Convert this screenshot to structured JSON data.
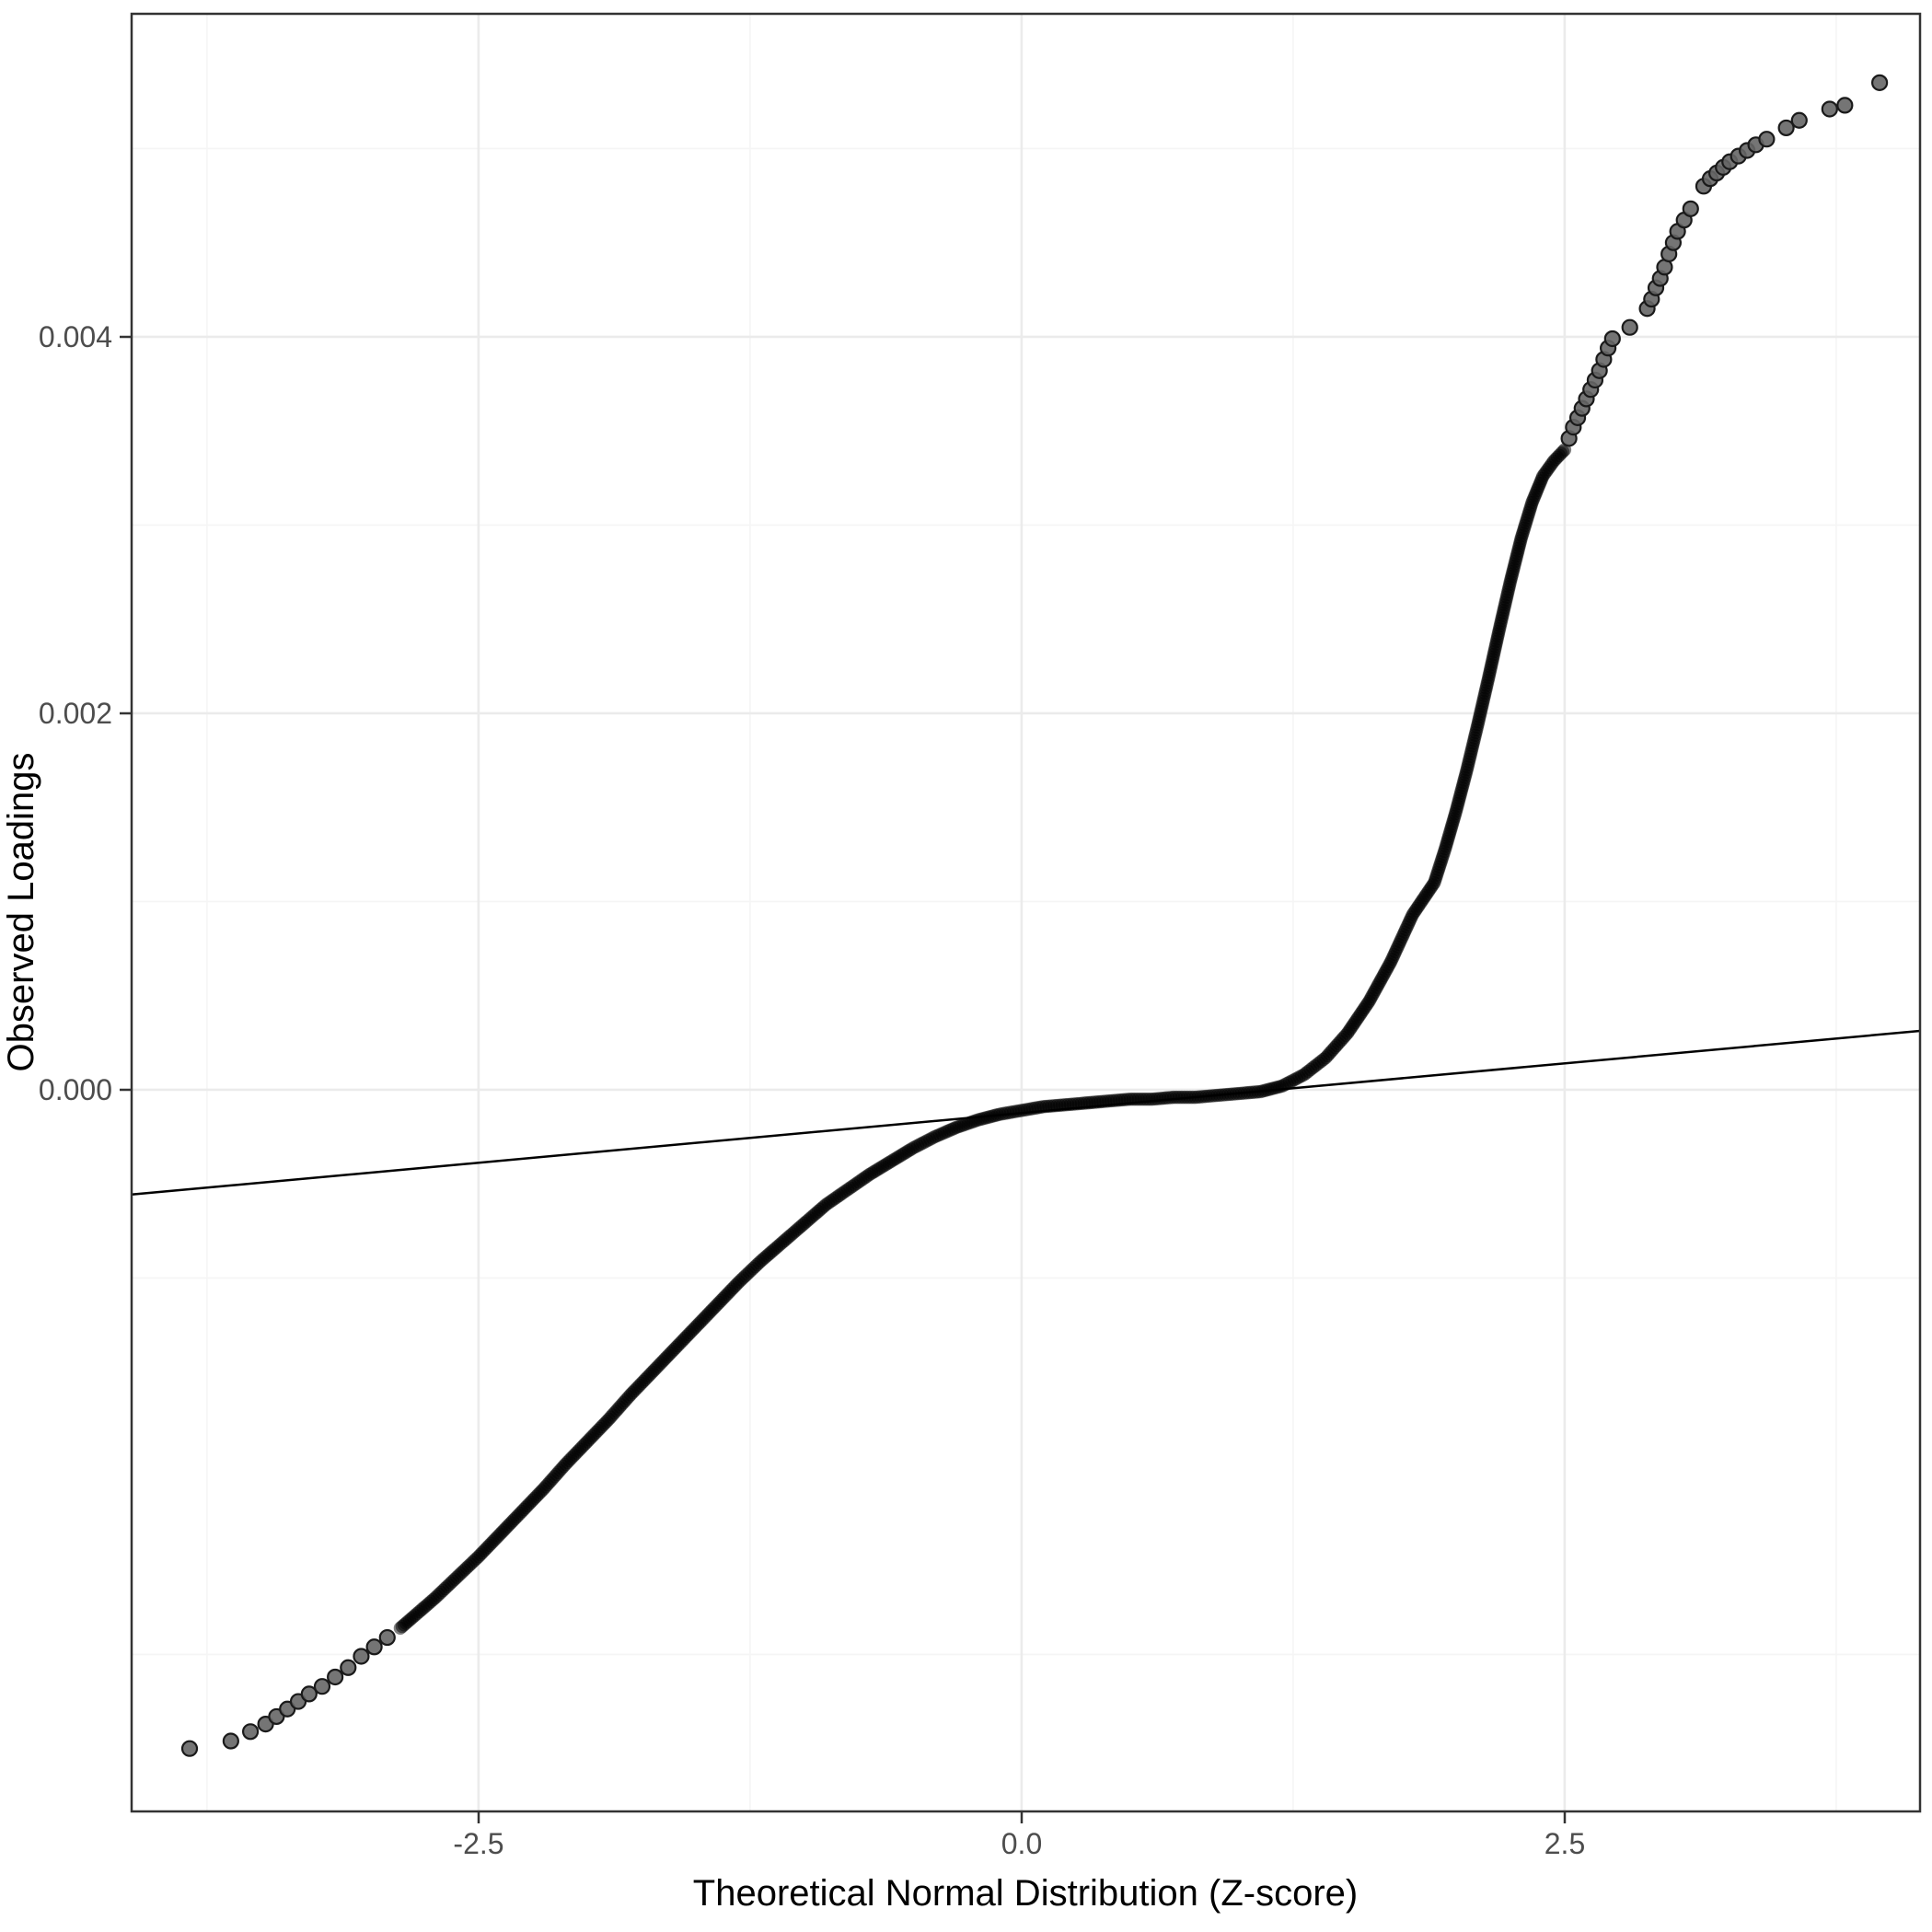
{
  "figure": {
    "background": "#FFFFFF"
  },
  "chart_data": {
    "type": "scatter",
    "subtype": "qq_plot",
    "title": "",
    "xlabel": "Theoretical Normal Distribution (Z-score)",
    "ylabel": "Observed Loadings",
    "xlim": [
      -4.097,
      4.136
    ],
    "ylim": [
      -0.003834,
      0.005716
    ],
    "grid": true,
    "legend": "none",
    "x_ticks": [
      {
        "value": -2.5,
        "label": "-2.5"
      },
      {
        "value": 0.0,
        "label": "0.0"
      },
      {
        "value": 2.5,
        "label": "2.5"
      }
    ],
    "y_ticks": [
      {
        "value": 0.0,
        "label": "0.000"
      },
      {
        "value": 0.002,
        "label": "0.002"
      },
      {
        "value": 0.004,
        "label": "0.004"
      }
    ],
    "x_minor": [
      -3.75,
      -1.25,
      1.25,
      3.75
    ],
    "y_minor": [
      -0.003,
      -0.001,
      0.001,
      0.003,
      0.005
    ],
    "reference_line": {
      "intercept": -0.000124,
      "slope": 0.0001056
    },
    "series": [
      {
        "name": "observed-loadings-dense-band",
        "render": "interpolated",
        "spacing_px": 3,
        "control_points": [
          [
            -2.86,
            -0.00286
          ],
          [
            -2.8,
            -0.0028
          ],
          [
            -2.7,
            -0.0027
          ],
          [
            -2.6,
            -0.00259
          ],
          [
            -2.5,
            -0.00248
          ],
          [
            -2.4,
            -0.00236
          ],
          [
            -2.3,
            -0.00224
          ],
          [
            -2.2,
            -0.00212
          ],
          [
            -2.1,
            -0.00199
          ],
          [
            -2.0,
            -0.00187
          ],
          [
            -1.9,
            -0.00175
          ],
          [
            -1.8,
            -0.00162
          ],
          [
            -1.7,
            -0.0015
          ],
          [
            -1.6,
            -0.00138
          ],
          [
            -1.5,
            -0.00126
          ],
          [
            -1.4,
            -0.00114
          ],
          [
            -1.3,
            -0.00102
          ],
          [
            -1.2,
            -0.00091
          ],
          [
            -1.1,
            -0.00081
          ],
          [
            -1.0,
            -0.00071
          ],
          [
            -0.9,
            -0.00061
          ],
          [
            -0.8,
            -0.00053
          ],
          [
            -0.7,
            -0.00045
          ],
          [
            -0.6,
            -0.00038
          ],
          [
            -0.5,
            -0.00031
          ],
          [
            -0.4,
            -0.00025
          ],
          [
            -0.3,
            -0.0002
          ],
          [
            -0.2,
            -0.00016
          ],
          [
            -0.1,
            -0.00013
          ],
          [
            0.0,
            -0.00011
          ],
          [
            0.1,
            -9e-05
          ],
          [
            0.2,
            -8e-05
          ],
          [
            0.3,
            -7e-05
          ],
          [
            0.4,
            -6e-05
          ],
          [
            0.5,
            -5e-05
          ],
          [
            0.6,
            -5e-05
          ],
          [
            0.7,
            -4e-05
          ],
          [
            0.8,
            -4e-05
          ],
          [
            0.9,
            -3e-05
          ],
          [
            1.0,
            -2e-05
          ],
          [
            1.1,
            -1e-05
          ],
          [
            1.2,
            2e-05
          ],
          [
            1.3,
            8e-05
          ],
          [
            1.4,
            0.00017
          ],
          [
            1.5,
            0.0003
          ],
          [
            1.6,
            0.00047
          ],
          [
            1.7,
            0.00068
          ],
          [
            1.8,
            0.00093
          ],
          [
            1.9,
            0.0011
          ],
          [
            1.95,
            0.00128
          ],
          [
            2.0,
            0.00148
          ],
          [
            2.05,
            0.0017
          ],
          [
            2.1,
            0.00194
          ],
          [
            2.15,
            0.00219
          ],
          [
            2.2,
            0.00245
          ],
          [
            2.25,
            0.0027
          ],
          [
            2.3,
            0.00293
          ],
          [
            2.35,
            0.00312
          ],
          [
            2.4,
            0.00326
          ],
          [
            2.45,
            0.00334
          ],
          [
            2.5,
            0.0034
          ]
        ]
      },
      {
        "name": "lower-tail-points",
        "render": "points",
        "points": [
          [
            -3.83,
            -0.0035
          ],
          [
            -3.64,
            -0.00346
          ],
          [
            -3.55,
            -0.00341
          ],
          [
            -3.48,
            -0.00337
          ],
          [
            -3.43,
            -0.00333
          ],
          [
            -3.38,
            -0.00329
          ],
          [
            -3.33,
            -0.00325
          ],
          [
            -3.28,
            -0.00321
          ],
          [
            -3.22,
            -0.00317
          ],
          [
            -3.16,
            -0.00312
          ],
          [
            -3.1,
            -0.00307
          ],
          [
            -3.04,
            -0.00301
          ],
          [
            -2.98,
            -0.00296
          ],
          [
            -2.92,
            -0.00291
          ]
        ]
      },
      {
        "name": "upper-tail-points",
        "render": "points",
        "points": [
          [
            2.52,
            0.00346
          ],
          [
            2.54,
            0.00352
          ],
          [
            2.56,
            0.00357
          ],
          [
            2.58,
            0.00362
          ],
          [
            2.6,
            0.00367
          ],
          [
            2.62,
            0.00372
          ],
          [
            2.64,
            0.00377
          ],
          [
            2.66,
            0.00382
          ],
          [
            2.68,
            0.00388
          ],
          [
            2.7,
            0.00394
          ],
          [
            2.72,
            0.00399
          ],
          [
            2.8,
            0.00405
          ],
          [
            2.88,
            0.00415
          ],
          [
            2.9,
            0.0042
          ],
          [
            2.92,
            0.00426
          ],
          [
            2.94,
            0.00431
          ],
          [
            2.96,
            0.00437
          ],
          [
            2.98,
            0.00444
          ],
          [
            3.0,
            0.0045
          ],
          [
            3.02,
            0.00456
          ],
          [
            3.05,
            0.00462
          ],
          [
            3.08,
            0.00468
          ],
          [
            3.14,
            0.0048
          ],
          [
            3.17,
            0.00484
          ],
          [
            3.2,
            0.00487
          ],
          [
            3.23,
            0.0049
          ],
          [
            3.26,
            0.00493
          ],
          [
            3.3,
            0.00496
          ],
          [
            3.34,
            0.00499
          ],
          [
            3.38,
            0.00502
          ],
          [
            3.43,
            0.00505
          ],
          [
            3.52,
            0.00511
          ],
          [
            3.58,
            0.00515
          ],
          [
            3.72,
            0.00521
          ],
          [
            3.79,
            0.00523
          ],
          [
            3.95,
            0.00535
          ]
        ]
      }
    ],
    "style": {
      "point_color": "#000000",
      "dense_opacity": 0.5,
      "sparse_fill": "#666666",
      "sparse_stroke": "#1a1a1a",
      "grid_major": "#EBEBEB",
      "grid_minor": "#F5F5F5",
      "panel_border": "#333333",
      "axis_text_color": "#4D4D4D",
      "axis_title_color": "#000000",
      "ref_line_color": "#000000"
    }
  }
}
